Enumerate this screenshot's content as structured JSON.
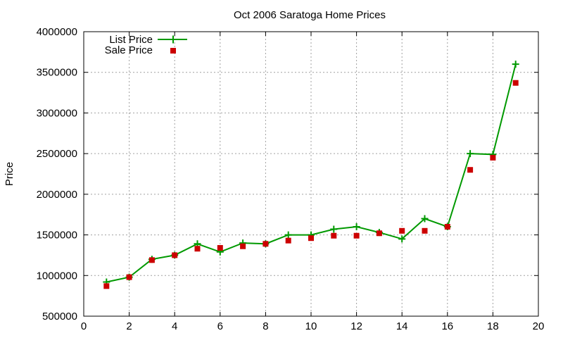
{
  "chart_data": {
    "type": "line",
    "title": "Oct 2006 Saratoga Home Prices",
    "xlabel": "",
    "ylabel": "Price",
    "xlim": [
      0,
      20
    ],
    "ylim": [
      500000,
      4000000
    ],
    "xticks": [
      "0",
      "2",
      "4",
      "6",
      "8",
      "10",
      "12",
      "14",
      "16",
      "18",
      "20"
    ],
    "yticks": [
      "500000",
      "1000000",
      "1500000",
      "2000000",
      "2500000",
      "3000000",
      "3500000",
      "4000000"
    ],
    "grid": true,
    "legend_position": "top-left",
    "series": [
      {
        "name": "List Price",
        "style": "line with plus markers",
        "color": "#009900",
        "x": [
          1,
          2,
          3,
          4,
          5,
          6,
          7,
          8,
          9,
          10,
          11,
          12,
          13,
          14,
          15,
          16,
          17,
          18,
          19
        ],
        "y": [
          920000,
          980000,
          1200000,
          1250000,
          1390000,
          1290000,
          1400000,
          1390000,
          1500000,
          1500000,
          1570000,
          1600000,
          1530000,
          1450000,
          1700000,
          1600000,
          2500000,
          2490000,
          3600000
        ]
      },
      {
        "name": "Sale Price",
        "style": "square markers",
        "color": "#cc0000",
        "x": [
          1,
          2,
          3,
          4,
          5,
          6,
          7,
          8,
          9,
          10,
          11,
          12,
          13,
          14,
          15,
          16,
          17,
          18,
          19
        ],
        "y": [
          870000,
          980000,
          1190000,
          1250000,
          1330000,
          1340000,
          1360000,
          1390000,
          1430000,
          1460000,
          1490000,
          1490000,
          1520000,
          1550000,
          1550000,
          1600000,
          2300000,
          2450000,
          3370000
        ]
      }
    ]
  }
}
